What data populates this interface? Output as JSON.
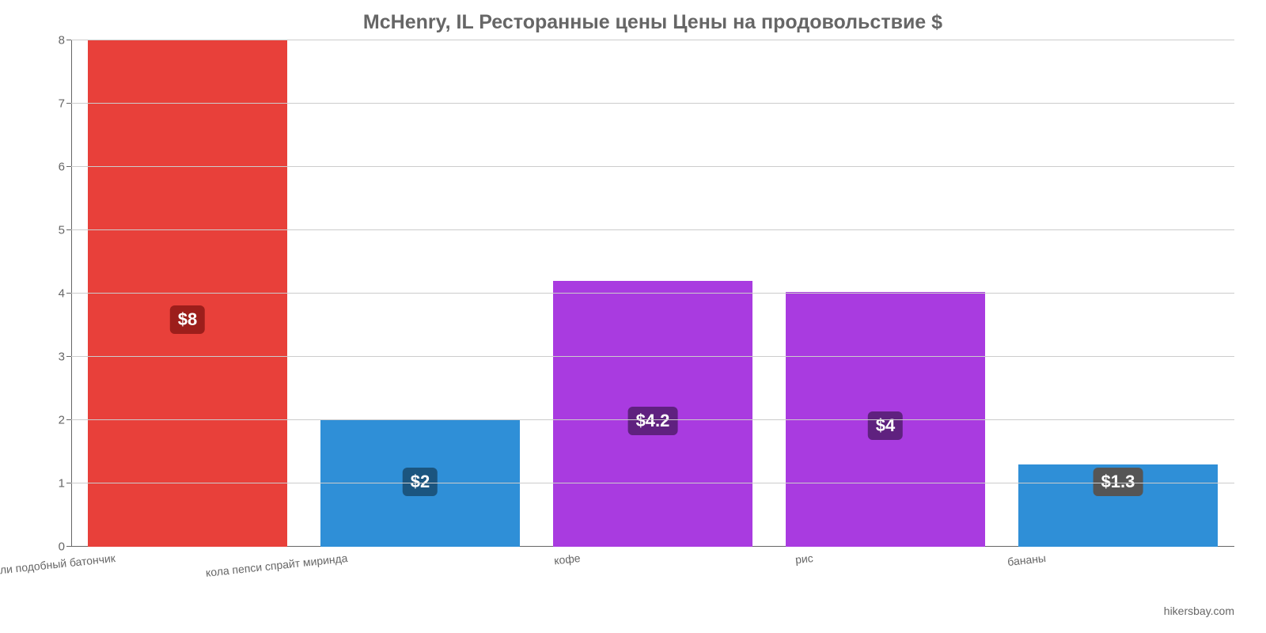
{
  "chart": {
    "type": "bar",
    "title": "McHenry, IL Ресторанные цены Цены на продовольствие $",
    "title_fontsize": 25,
    "title_color": "#666666",
    "background_color": "#ffffff",
    "grid_color": "#cccccc",
    "axis_color": "#666666",
    "tick_label_color": "#666666",
    "tick_label_fontsize": 15,
    "x_label_fontsize": 14,
    "x_label_rotation_deg": -6,
    "ylim": [
      0,
      8
    ],
    "yticks": [
      0,
      1,
      2,
      3,
      4,
      5,
      6,
      7,
      8
    ],
    "categories": [
      "mac burger king или подобный батончик",
      "кола пепси спрайт миринда",
      "кофе",
      "рис",
      "бананы"
    ],
    "values": [
      8,
      2,
      4.2,
      4.03,
      1.3
    ],
    "value_labels": [
      "$8",
      "$2",
      "$4.2",
      "$4",
      "$1.3"
    ],
    "bar_colors": [
      "#e8403a",
      "#2f8fd7",
      "#a93be0",
      "#a93be0",
      "#2f8fd7"
    ],
    "badge_colors": [
      "#9c1e1b",
      "#1b557f",
      "#5f217f",
      "#5f217f",
      "#555555"
    ],
    "badge_fontsize": 22,
    "bar_width_ratio": 0.86,
    "credit": "hikersbay.com"
  }
}
